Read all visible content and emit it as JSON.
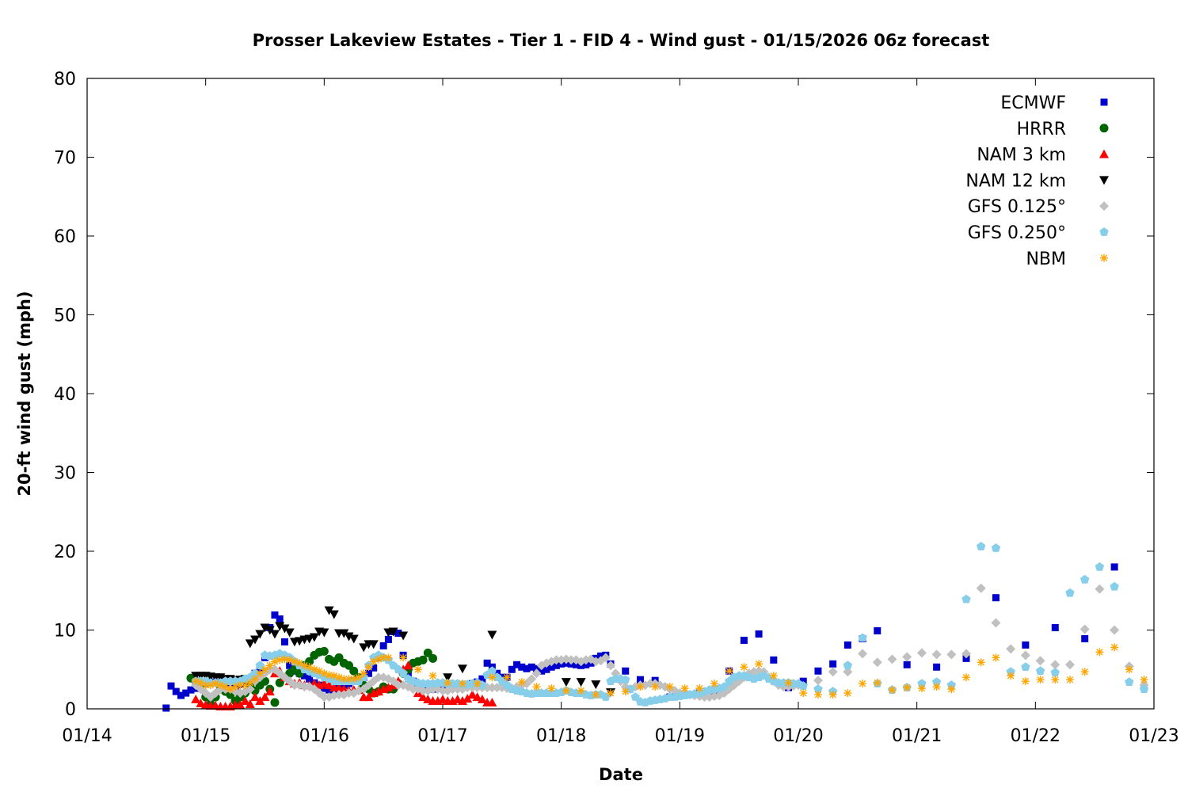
{
  "chart_data": {
    "type": "scatter",
    "title": "Prosser Lakeview Estates - Tier 1 - FID 4 - Wind gust - 01/15/2026 06z forecast",
    "xlabel": "Date",
    "ylabel": "20-ft wind gust (mph)",
    "x_units": "hours since 01/14 00z",
    "xlim": [
      0,
      216
    ],
    "ylim": [
      0,
      80
    ],
    "x_ticks": [
      {
        "h": 0,
        "label": "01/14"
      },
      {
        "h": 24,
        "label": "01/15"
      },
      {
        "h": 48,
        "label": "01/16"
      },
      {
        "h": 72,
        "label": "01/17"
      },
      {
        "h": 96,
        "label": "01/18"
      },
      {
        "h": 120,
        "label": "01/19"
      },
      {
        "h": 144,
        "label": "01/20"
      },
      {
        "h": 168,
        "label": "01/21"
      },
      {
        "h": 192,
        "label": "01/22"
      },
      {
        "h": 216,
        "label": "01/23"
      }
    ],
    "y_ticks": [
      0,
      10,
      20,
      30,
      40,
      50,
      60,
      70,
      80
    ],
    "grid": false,
    "legend_position": "top-right",
    "series": [
      {
        "name": "ECMWF",
        "marker": "square",
        "color": "#0000cc",
        "segments": [
          {
            "start": 16,
            "step": 1,
            "values": [
              0.1,
              2.9,
              2.2,
              1.7,
              2.0,
              2.4,
              2.6,
              3.0,
              3.2,
              3.4,
              3.3,
              3.0,
              2.8,
              2.6,
              2.8,
              3.1,
              3.4,
              3.8,
              4.5,
              5.2,
              6.5,
              10.3,
              11.9,
              11.4,
              8.5,
              5.5,
              4.8,
              4.5,
              4.2,
              3.8,
              3.3,
              3.0,
              2.6,
              2.4,
              2.5,
              2.8,
              3.0,
              3.2,
              3.5,
              3.8,
              4.0,
              4.5,
              5.2,
              6.5,
              8.0,
              8.8,
              9.8,
              9.6,
              6.8,
              4.5,
              3.5,
              3.0,
              2.7,
              2.5,
              2.5,
              2.7,
              2.9,
              3.0,
              3.1,
              3.0,
              3.0,
              3.1,
              3.2,
              3.4,
              3.8,
              5.8,
              5.3,
              4.5,
              4.0,
              4.0,
              5.0,
              5.6,
              5.3,
              5.1,
              5.3,
              5.1,
              4.8,
              5.0,
              5.3,
              5.5,
              5.7,
              5.8,
              5.7,
              5.6,
              5.5,
              5.6,
              5.8,
              6.4,
              6.7,
              6.8
            ]
          },
          {
            "start": 106,
            "step": 3,
            "values": [
              5.7,
              4.8,
              3.7,
              3.6,
              1.5,
              1.8,
              2.0,
              2.3,
              4.8,
              8.7,
              9.5,
              6.2,
              2.7,
              3.5,
              4.8,
              5.7,
              8.1,
              8.9,
              9.9,
              null,
              5.6,
              null,
              5.3,
              null,
              6.4,
              null,
              14.1,
              null,
              8.1,
              null,
              10.3,
              null,
              8.9,
              null,
              18.0
            ]
          }
        ]
      },
      {
        "name": "HRRR",
        "marker": "circle",
        "color": "#006400",
        "segments": [
          {
            "start": 21,
            "step": 1,
            "values": [
              3.9,
              3.5,
              3.0,
              1.5,
              0.6,
              1.5,
              2.5,
              2.2,
              1.8,
              1.0,
              1.5,
              2.0,
              3.0,
              2.3,
              3.0,
              3.5,
              2.5,
              0.8,
              3.3,
              4.0,
              4.5,
              5.0,
              4.5,
              5.5,
              6.0,
              6.8,
              7.2,
              7.3,
              6.3,
              6.0,
              6.5,
              5.8,
              5.5,
              4.8,
              4.0,
              3.0,
              2.5,
              2.0,
              2.2,
              2.8,
              2.5,
              2.5,
              3.2,
              4.5,
              5.0,
              5.8,
              6.0,
              6.2,
              7.1,
              6.4
            ]
          }
        ]
      },
      {
        "name": "NAM 3 km",
        "marker": "triangle-up",
        "color": "#ff0000",
        "segments": [
          {
            "start": 22,
            "step": 1,
            "values": [
              1.2,
              0.7,
              0.5,
              0.4,
              0.4,
              0.3,
              0.3,
              0.3,
              0.5,
              0.5,
              1.0,
              0.6,
              1.5,
              1.0,
              1.5,
              2.2,
              4.5,
              4.8,
              4.0,
              3.5,
              3.2,
              3.3,
              3.0,
              3.0,
              3.2,
              3.0,
              3.2,
              3.0,
              2.7,
              2.7,
              2.5,
              2.3,
              2.4,
              2.4,
              1.5,
              1.5,
              2.0,
              2.2,
              2.5,
              2.7,
              3.0,
              3.5,
              5.0,
              5.5,
              3.5,
              2.0,
              1.5,
              1.2,
              1.0,
              1.0,
              1.2,
              1.0,
              1.0,
              1.2,
              1.0,
              1.3,
              1.8,
              1.5,
              1.2,
              0.8,
              0.8
            ]
          }
        ]
      },
      {
        "name": "NAM 12 km",
        "marker": "triangle-down",
        "color": "#000000",
        "segments": [
          {
            "start": 22,
            "step": 1,
            "values": [
              4.2,
              4.2,
              4.2,
              4.1,
              4.0,
              4.0,
              3.8,
              3.8,
              3.6,
              3.7,
              3.8,
              8.3,
              8.8,
              9.5,
              10.3,
              10.0,
              9.5,
              10.5,
              10.2,
              9.7,
              8.5,
              8.6,
              8.8,
              8.9,
              9.1,
              9.8,
              9.7,
              12.5,
              12.0,
              9.6,
              9.6,
              9.2,
              8.9,
              null,
              7.8,
              8.2,
              8.2,
              null,
              null,
              9.7,
              9.8,
              null,
              9.3,
              null,
              null,
              null,
              null,
              null,
              null,
              null,
              null,
              4.0,
              null,
              null,
              5.1,
              null,
              null,
              null,
              null,
              null,
              9.4
            ]
          },
          {
            "start": 97,
            "step": 3,
            "values": [
              3.4,
              3.4,
              3.1,
              2.1
            ]
          }
        ]
      },
      {
        "name": "GFS 0.125°",
        "marker": "diamond",
        "color": "#c0c0c0",
        "segments": [
          {
            "start": 22,
            "step": 1,
            "values": [
              3.0,
              2.5,
              2.0,
              1.5,
              2.0,
              2.5,
              2.5,
              2.5,
              2.2,
              2.0,
              2.2,
              2.5,
              3.5,
              4.0,
              4.5,
              5.0,
              5.0,
              4.5,
              4.0,
              3.5,
              3.0,
              3.0,
              2.8,
              2.8,
              2.5,
              2.0,
              1.5,
              1.5,
              1.7,
              1.8,
              1.8,
              2.0,
              2.0,
              2.3,
              2.5,
              3.0,
              3.5,
              4.0,
              4.0,
              3.8,
              3.5,
              3.0,
              3.0,
              2.8,
              2.5,
              2.5,
              2.3,
              2.3,
              2.5,
              2.5,
              2.3,
              2.3,
              2.5,
              2.5,
              2.5,
              2.7,
              2.7,
              2.7,
              2.7,
              2.7,
              2.7,
              2.7,
              2.7,
              2.6,
              2.6,
              2.8,
              3.0,
              3.2,
              3.8,
              4.5,
              5.5,
              5.8,
              6.0,
              6.2,
              6.2,
              6.3,
              6.2,
              6.2,
              6.0,
              6.2,
              6.3,
              6.0,
              6.1,
              6.5,
              5.5,
              4.5,
              3.5,
              2.8,
              2.5,
              2.8,
              3.0,
              3.0,
              3.2,
              3.2,
              3.0,
              2.8,
              2.5,
              2.3,
              2.0,
              2.0,
              1.8,
              1.7,
              1.6,
              1.5,
              1.5,
              1.6,
              1.7,
              2.0,
              2.5,
              3.0,
              3.5,
              4.0,
              4.5,
              4.7,
              4.8,
              4.7,
              4.0,
              3.5,
              3.0,
              2.8,
              2.8,
              2.9,
              3.0
            ]
          },
          {
            "start": 145,
            "step": 3,
            "values": [
              null,
              3.6,
              4.7,
              4.7,
              7.0,
              5.9,
              6.3,
              6.6,
              7.1,
              6.9,
              6.9,
              7.0,
              15.3,
              10.9,
              7.6,
              6.8,
              6.1,
              5.6,
              5.6,
              10.1,
              15.2,
              10.0,
              5.4,
              3.0
            ]
          }
        ]
      },
      {
        "name": "GFS 0.250°",
        "marker": "pentagon",
        "color": "#87ceeb",
        "segments": [
          {
            "start": 22,
            "step": 1,
            "values": [
              3.5,
              3.5,
              3.5,
              3.3,
              3.3,
              3.3,
              3.5,
              3.5,
              3.5,
              3.5,
              3.8,
              4.0,
              4.5,
              5.5,
              6.8,
              6.7,
              6.8,
              7.0,
              6.8,
              6.5,
              6.0,
              5.5,
              5.0,
              4.8,
              4.5,
              4.3,
              4.0,
              3.8,
              3.5,
              3.5,
              3.5,
              3.5,
              3.5,
              3.5,
              4.0,
              5.5,
              6.5,
              6.8,
              6.5,
              6.2,
              5.5,
              5.0,
              4.5,
              3.8,
              3.5,
              3.3,
              3.2,
              3.2,
              3.2,
              3.3,
              3.3,
              3.2,
              3.2,
              3.2,
              3.1,
              3.1,
              3.2,
              3.3,
              3.0,
              4.3,
              4.8,
              4.0,
              3.5,
              3.0,
              2.5,
              2.3,
              2.2,
              2.0,
              1.9,
              2.0,
              2.0,
              2.0,
              2.0,
              2.0,
              2.1,
              2.3,
              2.1,
              2.0,
              2.0,
              1.8,
              1.7,
              1.8,
              1.8,
              1.5,
              3.5,
              3.8,
              3.8,
              3.7,
              2.5,
              1.5,
              0.9,
              0.8,
              1.0,
              1.1,
              1.2,
              1.3,
              1.5,
              1.5,
              1.6,
              1.7,
              1.8,
              1.9,
              2.0,
              2.2,
              2.4,
              2.5,
              2.6,
              2.8,
              3.5,
              4.0,
              4.2,
              4.2,
              4.0,
              3.8,
              4.0,
              4.2,
              3.8,
              3.5,
              3.3,
              3.3,
              3.3,
              3.2,
              3.2
            ]
          },
          {
            "start": 145,
            "step": 3,
            "values": [
              2.9,
              2.5,
              2.2,
              5.5,
              9.0,
              3.2,
              2.4,
              2.7,
              3.2,
              3.4,
              3.0,
              13.9,
              20.6,
              20.4,
              4.7,
              5.3,
              4.8,
              4.6,
              14.7,
              16.4,
              18.0,
              15.5,
              3.4,
              2.5
            ]
          }
        ]
      },
      {
        "name": "NBM",
        "marker": "asterisk",
        "color": "#ffa500",
        "segments": [
          {
            "start": 22,
            "step": 1,
            "values": [
              3.5,
              3.3,
              3.0,
              3.0,
              3.2,
              3.0,
              2.8,
              2.5,
              2.8,
              3.0,
              3.0,
              3.3,
              3.8,
              4.5,
              5.0,
              5.5,
              6.0,
              6.2,
              6.3,
              6.2,
              6.0,
              5.8,
              5.5,
              5.3,
              5.0,
              4.8,
              4.5,
              4.3,
              4.2,
              4.0,
              3.8,
              3.8,
              3.8,
              4.0,
              4.5,
              5.3,
              6.0,
              6.3,
              6.5
            ]
          },
          {
            "start": 61,
            "step": 3,
            "values": [
              6.5,
              6.5,
              5.0,
              4.2,
              3.3,
              3.2,
              3.2,
              4.0,
              4.0,
              3.4,
              2.8,
              2.6,
              2.3,
              2.3,
              1.8,
              2.0,
              2.2,
              2.8,
              2.8,
              2.8,
              2.6,
              2.6,
              3.2,
              4.8,
              5.3,
              5.7,
              4.2,
              3.3,
              2.0,
              1.8,
              1.8,
              2.0,
              3.2,
              3.3,
              2.4,
              2.7,
              2.6,
              2.8,
              2.5,
              4.0,
              5.9,
              6.5,
              4.2,
              3.5,
              3.7,
              3.7,
              3.7,
              4.7,
              7.2,
              7.8,
              5.0,
              3.7
            ]
          }
        ]
      }
    ]
  }
}
